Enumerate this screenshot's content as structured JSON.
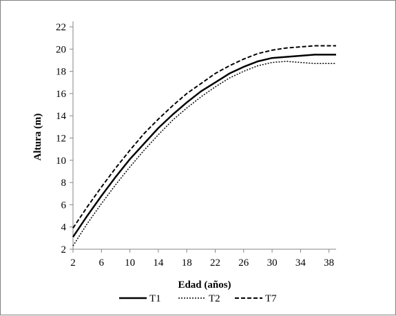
{
  "chart_data": {
    "type": "line",
    "xlabel": "Edad (años)",
    "ylabel": "Altura (m)",
    "xlim": [
      2,
      39
    ],
    "ylim": [
      2,
      22
    ],
    "x_ticks": [
      2,
      6,
      10,
      14,
      18,
      22,
      26,
      30,
      34,
      38
    ],
    "y_ticks": [
      2,
      4,
      6,
      8,
      10,
      12,
      14,
      16,
      18,
      20,
      22
    ],
    "grid": false,
    "legend_position": "bottom",
    "series": [
      {
        "name": "T1",
        "style": "solid",
        "color": "#000000",
        "x": [
          2,
          4,
          6,
          8,
          10,
          12,
          14,
          16,
          18,
          20,
          22,
          24,
          26,
          28,
          30,
          32,
          34,
          36,
          38,
          39
        ],
        "values": [
          3.1,
          5.0,
          6.8,
          8.5,
          10.1,
          11.5,
          12.9,
          14.1,
          15.2,
          16.2,
          17.0,
          17.8,
          18.4,
          18.9,
          19.2,
          19.3,
          19.4,
          19.5,
          19.5,
          19.5
        ]
      },
      {
        "name": "T2",
        "style": "dotted",
        "color": "#000000",
        "x": [
          2,
          4,
          6,
          8,
          10,
          12,
          14,
          16,
          18,
          20,
          22,
          24,
          26,
          28,
          30,
          32,
          34,
          36,
          38,
          39
        ],
        "values": [
          2.3,
          4.3,
          6.1,
          7.8,
          9.4,
          10.9,
          12.3,
          13.6,
          14.7,
          15.7,
          16.6,
          17.4,
          18.0,
          18.5,
          18.8,
          18.9,
          18.8,
          18.7,
          18.7,
          18.7
        ]
      },
      {
        "name": "T7",
        "style": "dashed",
        "color": "#000000",
        "x": [
          2,
          4,
          6,
          8,
          10,
          12,
          14,
          16,
          18,
          20,
          22,
          24,
          26,
          28,
          30,
          32,
          34,
          36,
          38,
          39
        ],
        "values": [
          3.9,
          5.8,
          7.6,
          9.3,
          10.9,
          12.4,
          13.7,
          14.9,
          16.0,
          16.9,
          17.8,
          18.5,
          19.1,
          19.6,
          19.9,
          20.1,
          20.2,
          20.3,
          20.3,
          20.3
        ]
      }
    ]
  }
}
